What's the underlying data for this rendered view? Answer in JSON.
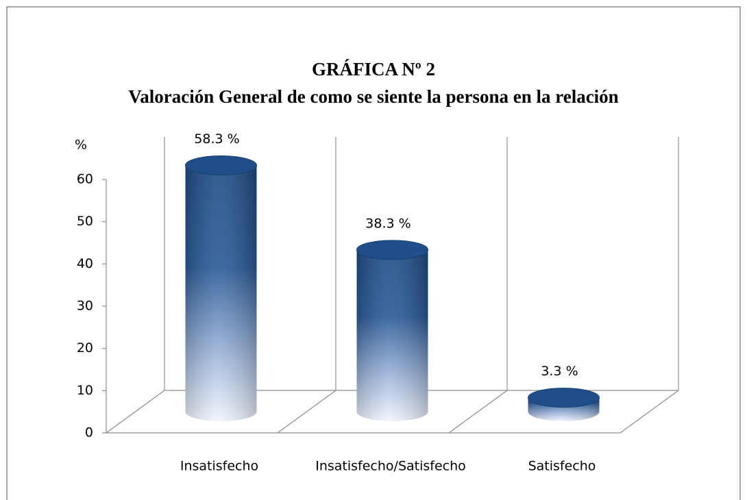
{
  "chart_data": {
    "type": "bar3d",
    "title": "GRÁFICA Nº 2",
    "subtitle": "Valoración General de como se siente la persona en la relación",
    "y_label": "%",
    "categories": [
      "Insatisfecho",
      "Insatisfecho/Satisfecho",
      "Satisfecho"
    ],
    "values": [
      58.3,
      38.3,
      3.3
    ],
    "value_labels": [
      "58.3 %",
      "38.3 %",
      "3.3 %"
    ],
    "color": "#1f4e8a",
    "ylim": [
      0,
      60
    ],
    "yticks": [
      0,
      10,
      20,
      30,
      40,
      50,
      60
    ],
    "grid": true
  }
}
